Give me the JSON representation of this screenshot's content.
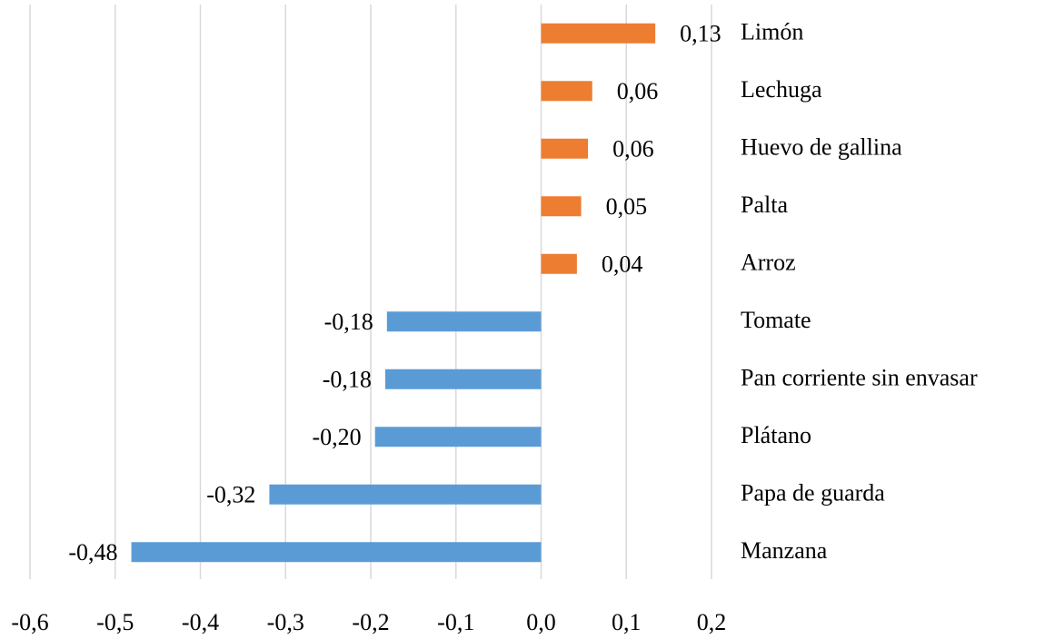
{
  "chart_data": {
    "type": "bar",
    "orientation": "horizontal",
    "categories": [
      "Limón",
      "Lechuga",
      "Huevo de gallina",
      "Palta",
      "Arroz",
      "Tomate",
      "Pan corriente sin envasar",
      "Plátano",
      "Papa de guarda",
      "Manzana"
    ],
    "values": [
      0.134,
      0.06,
      0.055,
      0.047,
      0.042,
      -0.181,
      -0.183,
      -0.195,
      -0.319,
      -0.481
    ],
    "value_labels": [
      "0,13",
      "0,06",
      "0,06",
      "0,05",
      "0,04",
      "-0,18",
      "-0,18",
      "-0,20",
      "-0,32",
      "-0,48"
    ],
    "colors": [
      "#ed7d31",
      "#ed7d31",
      "#ed7d31",
      "#ed7d31",
      "#ed7d31",
      "#5b9bd5",
      "#5b9bd5",
      "#5b9bd5",
      "#5b9bd5",
      "#5b9bd5"
    ],
    "xlim": [
      -0.6,
      0.2
    ],
    "xticks": [
      {
        "value": -0.6,
        "label": "-0,6"
      },
      {
        "value": -0.5,
        "label": "-0,5"
      },
      {
        "value": -0.4,
        "label": "-0,4"
      },
      {
        "value": -0.3,
        "label": "-0,3"
      },
      {
        "value": -0.2,
        "label": "-0,2"
      },
      {
        "value": -0.1,
        "label": "-0,1"
      },
      {
        "value": 0,
        "label": "0,0"
      },
      {
        "value": 0.1,
        "label": "0,1"
      },
      {
        "value": 0.2,
        "label": "0,2"
      }
    ],
    "grid": true
  }
}
